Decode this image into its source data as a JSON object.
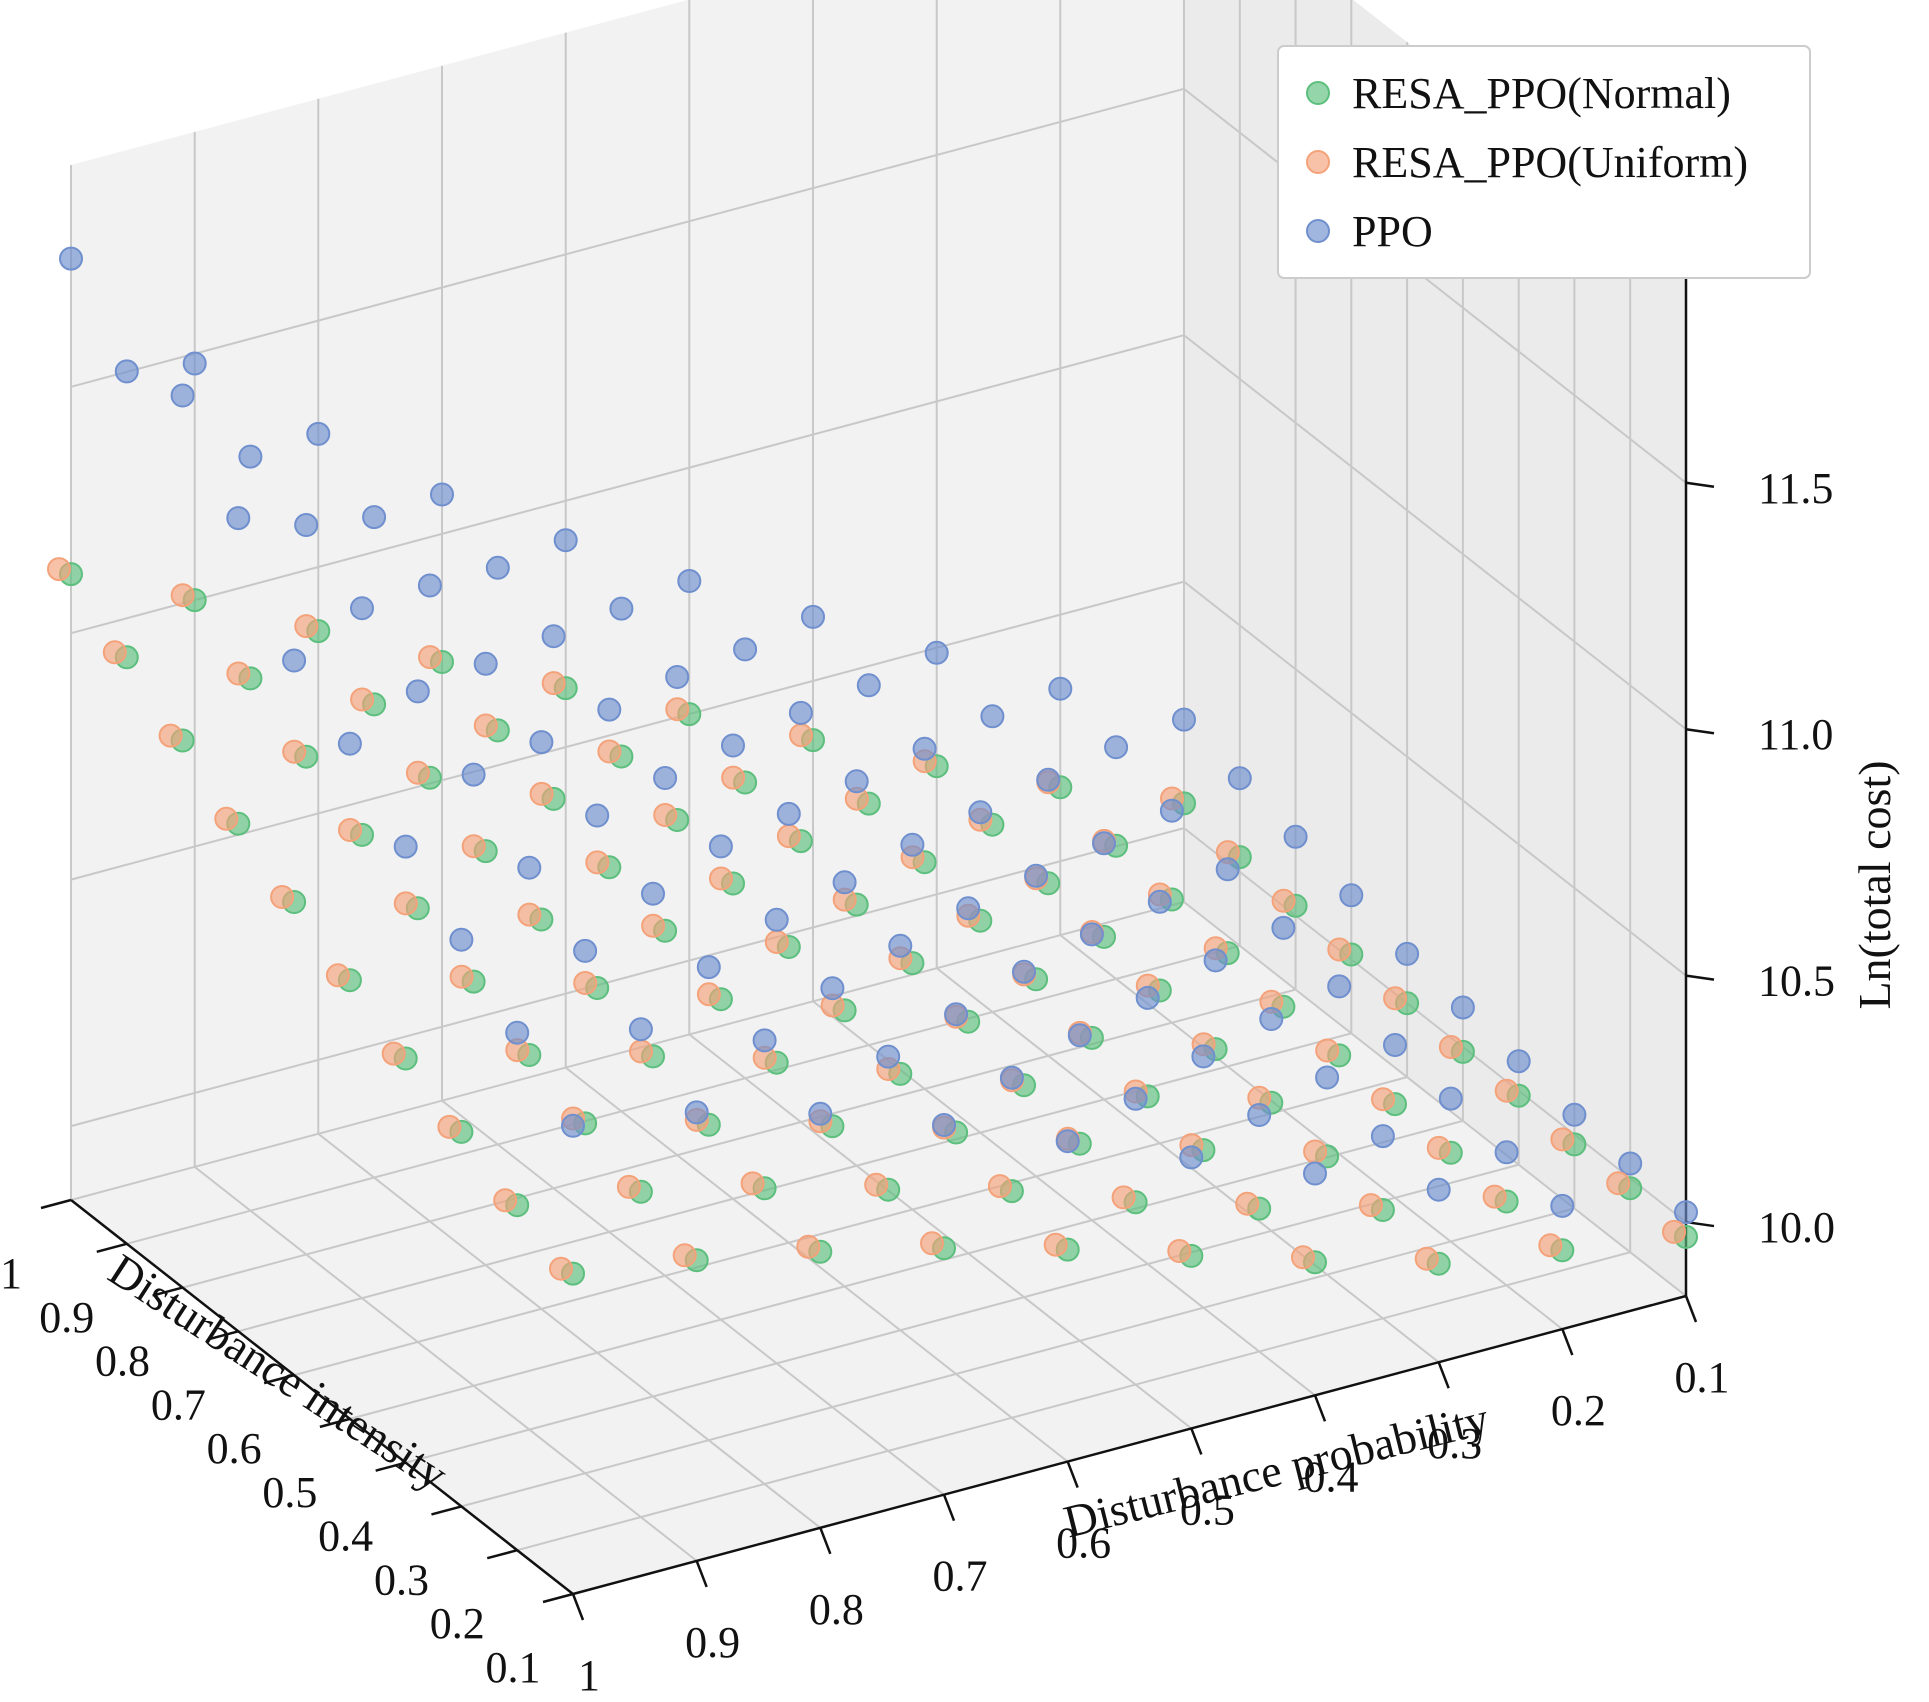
{
  "chart_data": {
    "type": "scatter3d",
    "title": "",
    "xlabel": "Disturbance intensity",
    "ylabel": "Disturbance probability",
    "zlabel": "Ln(total cost)",
    "x_ticks": [
      "1",
      "0.9",
      "0.8",
      "0.7",
      "0.6",
      "0.5",
      "0.4",
      "0.3",
      "0.2",
      "0.1"
    ],
    "y_ticks": [
      "1",
      "0.9",
      "0.8",
      "0.7",
      "0.6",
      "0.5",
      "0.4",
      "0.3",
      "0.2",
      "0.1"
    ],
    "z_ticks": [
      "10.0",
      "10.5",
      "11.0",
      "11.5"
    ],
    "x_values": [
      1.0,
      0.9,
      0.8,
      0.7,
      0.6,
      0.5,
      0.4,
      0.3,
      0.2,
      0.1
    ],
    "y_values": [
      1.0,
      0.9,
      0.8,
      0.7,
      0.6,
      0.5,
      0.4,
      0.3,
      0.2,
      0.1
    ],
    "zlim": [
      9.85,
      11.95
    ],
    "legend_position": "top-right",
    "series": [
      {
        "name": "RESA_PPO(Normal)",
        "color": "#5cbf7d",
        "z": [
          [
            11.12,
            11.0,
            10.87,
            10.74,
            10.62,
            10.5,
            10.38,
            10.26,
            10.15,
            10.05
          ],
          [
            11.04,
            10.93,
            10.81,
            10.69,
            10.57,
            10.45,
            10.34,
            10.23,
            10.12,
            10.03
          ],
          [
            10.96,
            10.86,
            10.75,
            10.64,
            10.53,
            10.42,
            10.31,
            10.2,
            10.1,
            10.02
          ],
          [
            10.88,
            10.79,
            10.69,
            10.59,
            10.49,
            10.38,
            10.28,
            10.18,
            10.08,
            10.01
          ],
          [
            10.81,
            10.73,
            10.64,
            10.55,
            10.45,
            10.35,
            10.25,
            10.16,
            10.06,
            10.0
          ],
          [
            10.74,
            10.67,
            10.59,
            10.5,
            10.41,
            10.32,
            10.22,
            10.13,
            10.05,
            9.99
          ],
          [
            10.67,
            10.61,
            10.54,
            10.46,
            10.37,
            10.28,
            10.19,
            10.11,
            10.04,
            9.99
          ],
          [
            10.61,
            10.56,
            10.49,
            10.42,
            10.34,
            10.25,
            10.17,
            10.09,
            10.03,
            9.98
          ],
          [
            10.55,
            10.51,
            10.45,
            10.38,
            10.31,
            10.22,
            10.14,
            10.07,
            10.02,
            9.98
          ],
          [
            10.5,
            10.46,
            10.41,
            10.35,
            10.28,
            10.2,
            10.12,
            10.05,
            10.01,
            9.97
          ]
        ]
      },
      {
        "name": "RESA_PPO(Uniform)",
        "color": "#f4a27a",
        "z": [
          [
            11.13,
            11.01,
            10.88,
            10.75,
            10.63,
            10.51,
            10.39,
            10.27,
            10.16,
            10.06
          ],
          [
            11.05,
            10.94,
            10.82,
            10.7,
            10.58,
            10.46,
            10.35,
            10.24,
            10.13,
            10.04
          ],
          [
            10.97,
            10.87,
            10.76,
            10.65,
            10.54,
            10.43,
            10.32,
            10.21,
            10.11,
            10.03
          ],
          [
            10.89,
            10.8,
            10.7,
            10.6,
            10.5,
            10.39,
            10.29,
            10.19,
            10.09,
            10.02
          ],
          [
            10.82,
            10.74,
            10.65,
            10.56,
            10.46,
            10.36,
            10.26,
            10.17,
            10.07,
            10.01
          ],
          [
            10.75,
            10.68,
            10.6,
            10.51,
            10.42,
            10.33,
            10.23,
            10.14,
            10.06,
            10.0
          ],
          [
            10.68,
            10.62,
            10.55,
            10.47,
            10.38,
            10.29,
            10.2,
            10.12,
            10.05,
            10.0
          ],
          [
            10.62,
            10.57,
            10.5,
            10.43,
            10.35,
            10.26,
            10.18,
            10.1,
            10.04,
            9.99
          ],
          [
            10.56,
            10.52,
            10.46,
            10.39,
            10.32,
            10.23,
            10.15,
            10.08,
            10.03,
            9.99
          ],
          [
            10.51,
            10.47,
            10.42,
            10.36,
            10.29,
            10.21,
            10.13,
            10.06,
            10.02,
            9.98
          ]
        ]
      },
      {
        "name": "PPO",
        "color": "#6f8fce",
        "z": [
          [
            11.76,
            11.48,
            11.27,
            11.08,
            10.92,
            10.77,
            10.63,
            10.49,
            10.35,
            10.22
          ],
          [
            11.62,
            11.38,
            11.19,
            11.02,
            10.87,
            10.72,
            10.58,
            10.45,
            10.32,
            10.19
          ],
          [
            11.66,
            11.33,
            11.14,
            10.97,
            10.82,
            10.68,
            10.54,
            10.41,
            10.28,
            10.16
          ],
          [
            11.5,
            11.25,
            11.07,
            10.91,
            10.77,
            10.63,
            10.5,
            10.37,
            10.25,
            10.13
          ],
          [
            11.3,
            11.17,
            11.0,
            10.86,
            10.72,
            10.59,
            10.46,
            10.34,
            10.22,
            10.1
          ],
          [
            11.22,
            11.09,
            10.94,
            10.81,
            10.67,
            10.55,
            10.43,
            10.31,
            10.19,
            10.08
          ],
          [
            11.1,
            10.99,
            10.87,
            10.75,
            10.63,
            10.51,
            10.39,
            10.28,
            10.16,
            10.06
          ],
          [
            11.0,
            10.91,
            10.81,
            10.7,
            10.58,
            10.47,
            10.36,
            10.25,
            10.14,
            10.04
          ],
          [
            10.9,
            10.84,
            10.75,
            10.65,
            10.54,
            10.43,
            10.33,
            10.22,
            10.12,
            10.03
          ],
          [
            10.8,
            10.76,
            10.69,
            10.6,
            10.5,
            10.4,
            10.3,
            10.2,
            10.1,
            10.02
          ]
        ]
      }
    ]
  }
}
